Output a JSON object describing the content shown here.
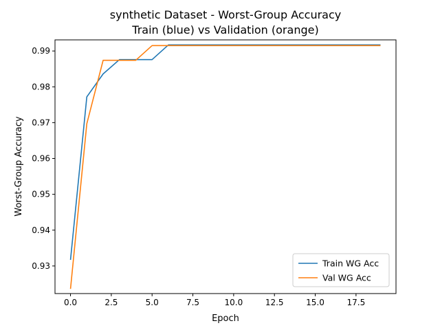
{
  "chart_data": {
    "type": "line",
    "title_line1": "synthetic Dataset - Worst-Group Accuracy",
    "title_line2": "Train (blue) vs Validation (orange)",
    "xlabel": "Epoch",
    "ylabel": "Worst-Group Accuracy",
    "xlim": [
      -0.95,
      19.95
    ],
    "ylim": [
      0.9223,
      0.9931
    ],
    "x_ticks": [
      0,
      2.5,
      5,
      7.5,
      10,
      12.5,
      15,
      17.5
    ],
    "x_tick_labels": [
      "0.0",
      "2.5",
      "5.0",
      "7.5",
      "10.0",
      "12.5",
      "15.0",
      "17.5"
    ],
    "y_ticks": [
      0.93,
      0.94,
      0.95,
      0.96,
      0.97,
      0.98,
      0.99
    ],
    "y_tick_labels": [
      "0.93",
      "0.94",
      "0.95",
      "0.96",
      "0.97",
      "0.98",
      "0.99"
    ],
    "grid": false,
    "legend_position": "lower-right",
    "x": [
      0,
      1,
      2,
      3,
      4,
      5,
      6,
      7,
      8,
      9,
      10,
      11,
      12,
      13,
      14,
      15,
      16,
      17,
      18,
      19
    ],
    "series": [
      {
        "name": "Train WG Acc",
        "color": "#1f77b4",
        "values": [
          0.9317,
          0.9772,
          0.9836,
          0.9876,
          0.9876,
          0.9876,
          0.9917,
          0.9917,
          0.9917,
          0.9917,
          0.9917,
          0.9917,
          0.9917,
          0.9917,
          0.9917,
          0.9917,
          0.9917,
          0.9917,
          0.9917,
          0.9917
        ]
      },
      {
        "name": "Val WG Acc",
        "color": "#ff7f0e",
        "values": [
          0.9236,
          0.9697,
          0.9874,
          0.9874,
          0.9874,
          0.9915,
          0.9915,
          0.9915,
          0.9915,
          0.9915,
          0.9915,
          0.9915,
          0.9915,
          0.9915,
          0.9915,
          0.9915,
          0.9915,
          0.9915,
          0.9915,
          0.9915
        ]
      }
    ]
  }
}
